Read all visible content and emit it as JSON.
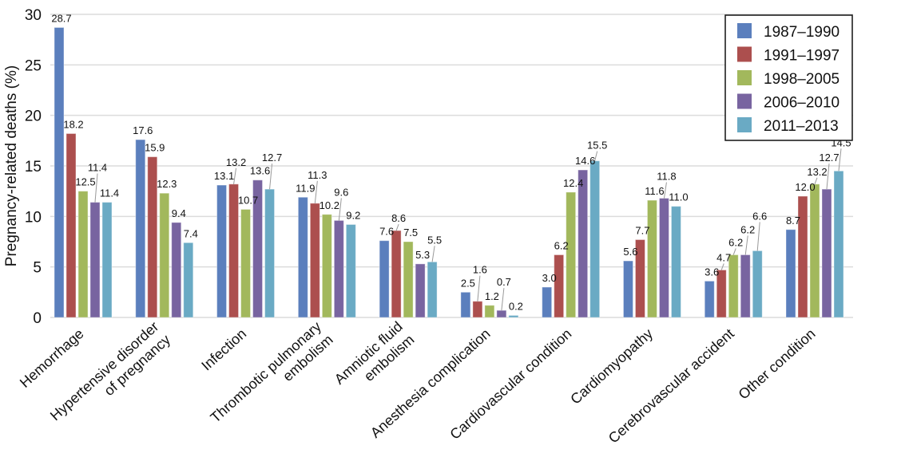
{
  "chart_data": {
    "type": "bar",
    "title": "",
    "xlabel": "",
    "ylabel": "Pregnancy-related deaths (%)",
    "ylim": [
      0,
      30
    ],
    "yticks": [
      0,
      5,
      10,
      15,
      20,
      25,
      30
    ],
    "grid": true,
    "legend_position": "top-right",
    "categories": [
      [
        "Hemorrhage"
      ],
      [
        "Hypertensive disorder",
        "of pregnancy"
      ],
      [
        "Infection"
      ],
      [
        "Thrombotic pulmonary",
        "embolism"
      ],
      [
        "Amniotic fluid",
        "embolism"
      ],
      [
        "Anesthesia complication"
      ],
      [
        "Cardiovascular condition"
      ],
      [
        "Cardiomyopathy"
      ],
      [
        "Cerebrovascular accident"
      ],
      [
        "Other condition"
      ]
    ],
    "series": [
      {
        "name": "1987–1990",
        "color": "#5b7fbd",
        "values": [
          28.7,
          17.6,
          13.1,
          11.9,
          7.6,
          2.5,
          3.0,
          5.6,
          3.6,
          8.7
        ]
      },
      {
        "name": "1991–1997",
        "color": "#ac4f4e",
        "values": [
          18.2,
          15.9,
          13.2,
          11.3,
          8.6,
          1.6,
          6.2,
          7.7,
          4.7,
          12.0
        ]
      },
      {
        "name": "1998–2005",
        "color": "#a2b85c",
        "values": [
          12.5,
          12.3,
          10.7,
          10.2,
          7.5,
          1.2,
          12.4,
          11.6,
          6.2,
          13.2
        ]
      },
      {
        "name": "2006–2010",
        "color": "#7864a0",
        "values": [
          11.4,
          9.4,
          13.6,
          9.6,
          5.3,
          0.7,
          14.6,
          11.8,
          6.2,
          12.7
        ]
      },
      {
        "name": "2011–2013",
        "color": "#6aaac4",
        "values": [
          11.4,
          7.4,
          12.7,
          9.2,
          5.5,
          0.2,
          15.5,
          11.0,
          6.6,
          14.5
        ]
      }
    ],
    "value_labels": [
      [
        "28.7",
        "17.6",
        "13.1",
        "11.9",
        "7.6",
        "2.5",
        "3.0",
        "5.6",
        "3.6",
        "8.7"
      ],
      [
        "18.2",
        "15.9",
        "13.2",
        "11.3",
        "8.6",
        "1.6",
        "6.2",
        "7.7",
        "4.7",
        "12.0"
      ],
      [
        "12.5",
        "12.3",
        "10.7",
        "10.2",
        "7.5",
        "1.2",
        "12.4",
        "11.6",
        "6.2",
        "13.2"
      ],
      [
        "11.4",
        "9.4",
        "13.6",
        "9.6",
        "5.3",
        "0.7",
        "14.6",
        "11.8",
        "6.2",
        "12.7"
      ],
      [
        "11.4",
        "7.4",
        "12.7",
        "9.2",
        "5.5",
        "0.2",
        "15.5",
        "11.0",
        "6.6",
        "14.5"
      ]
    ]
  }
}
